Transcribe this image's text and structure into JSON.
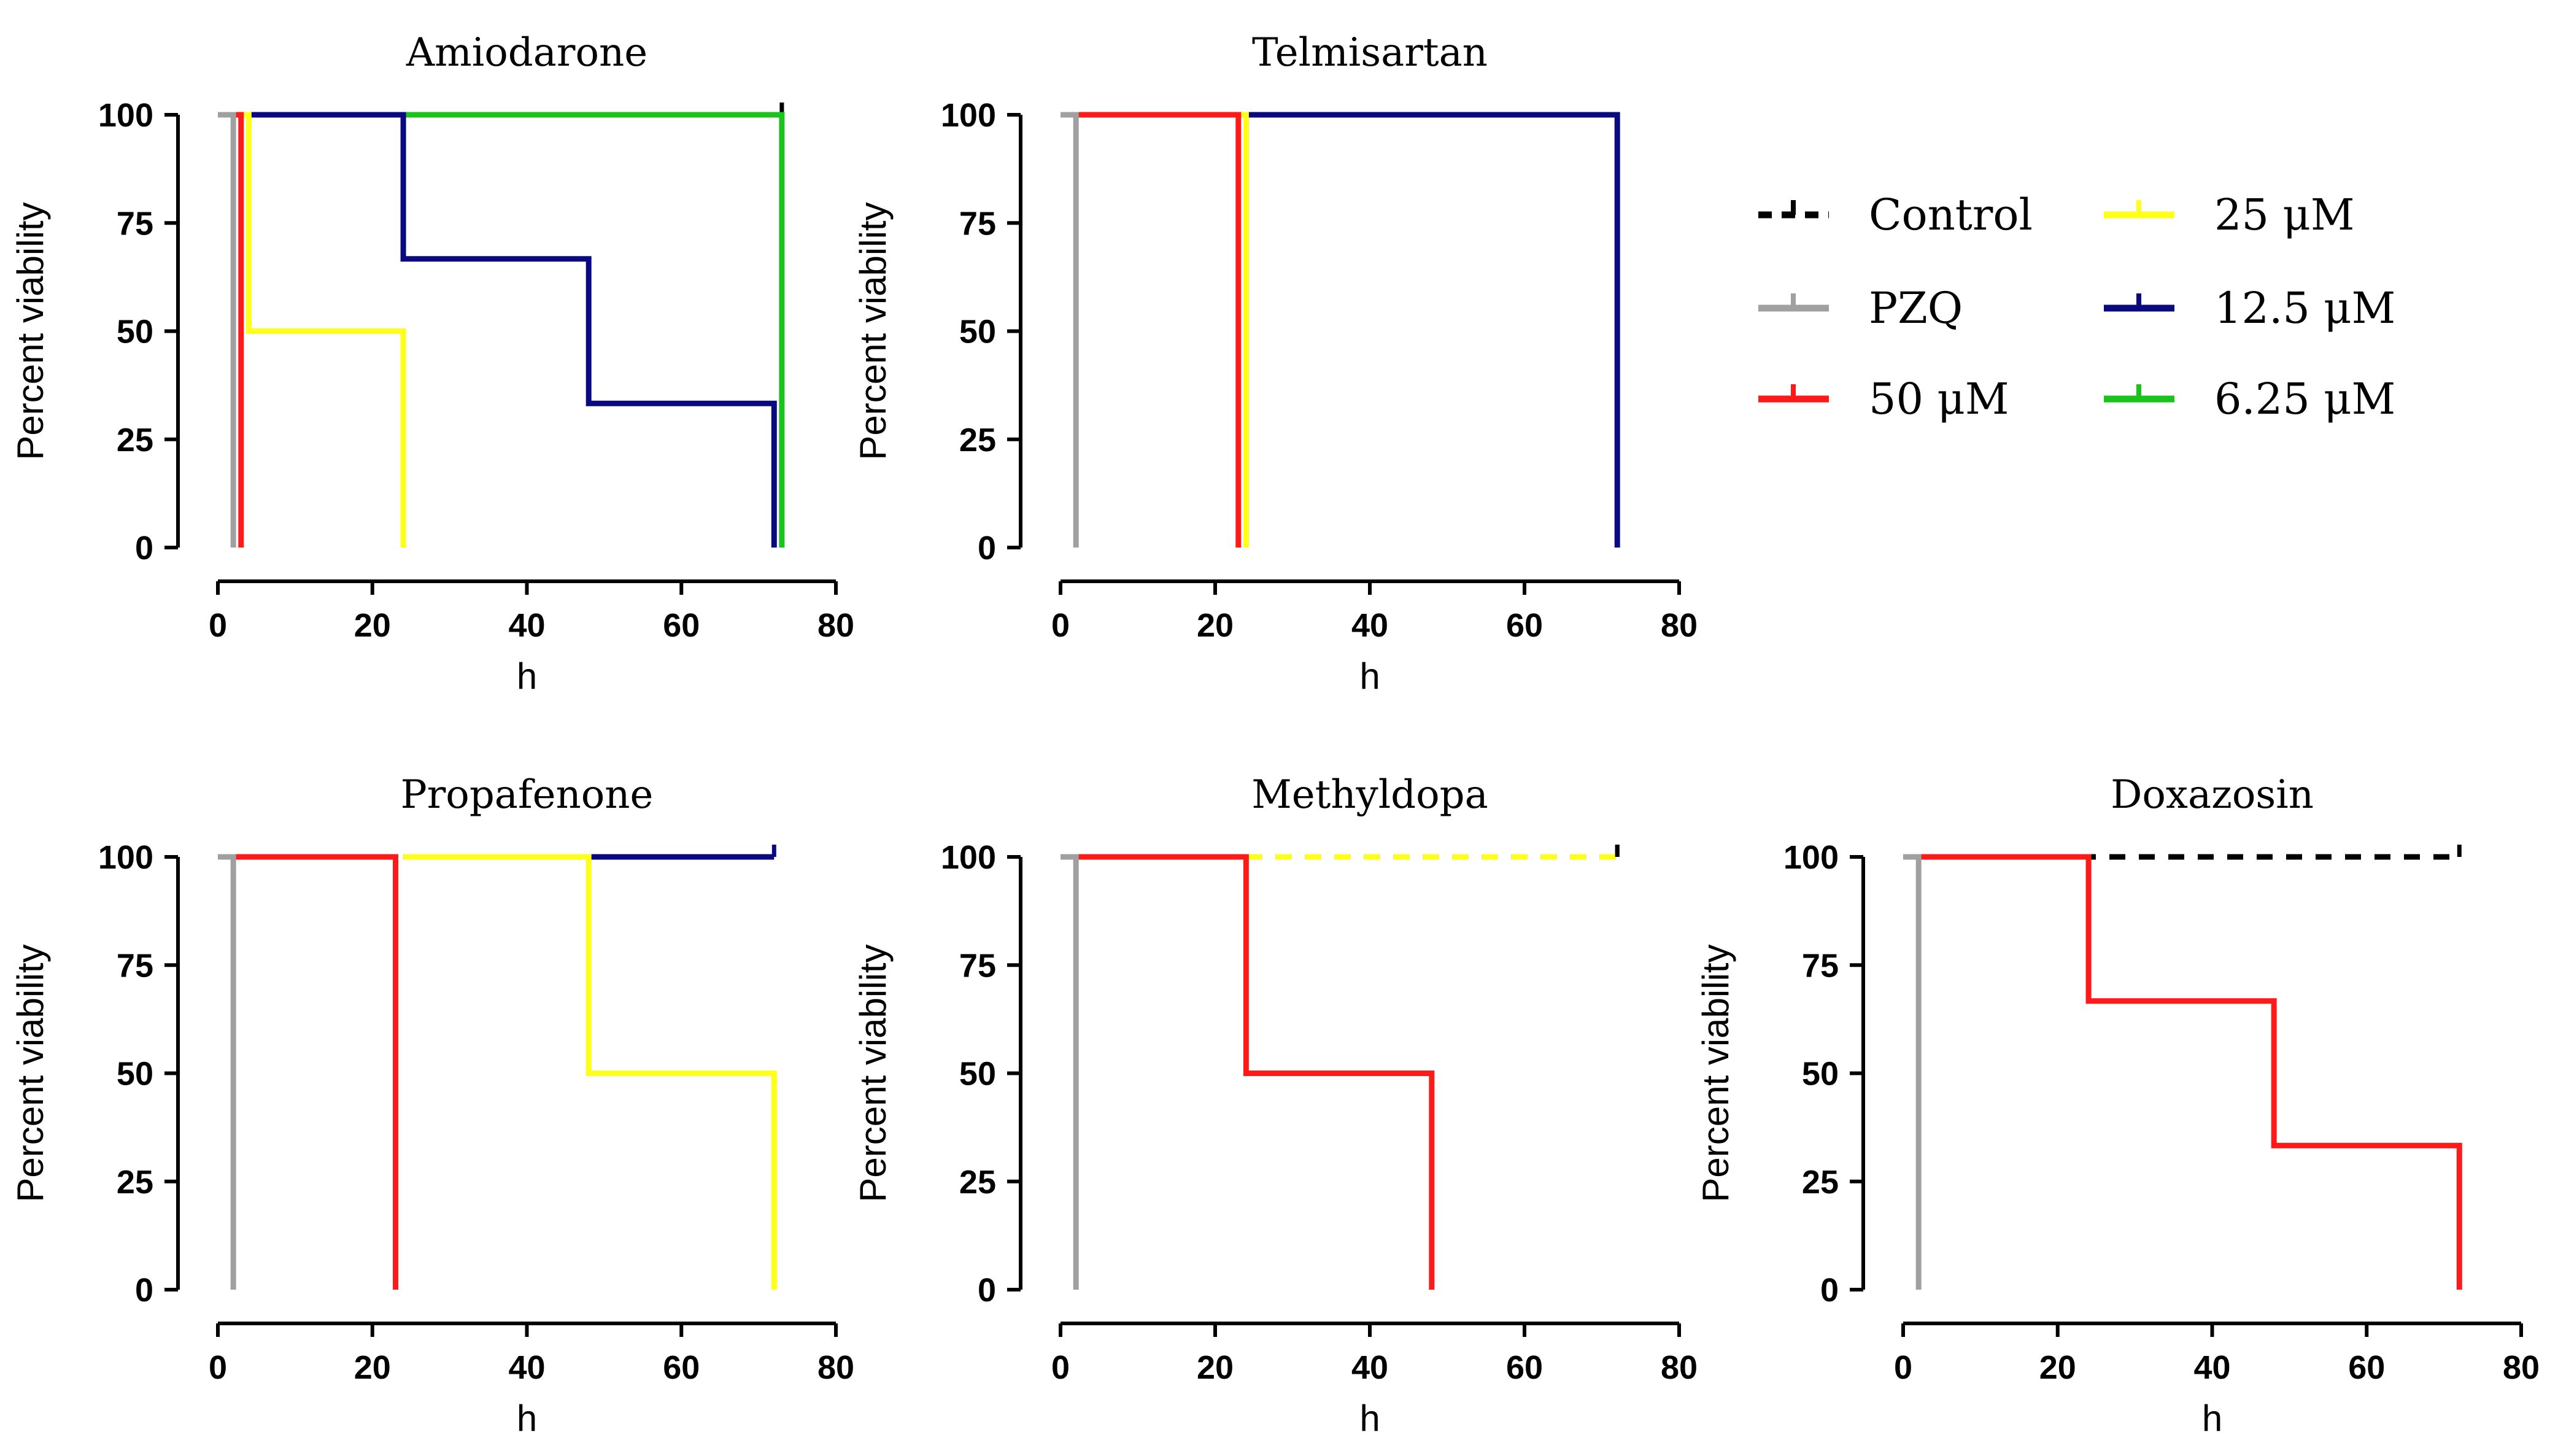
{
  "legend": {
    "entries": [
      {
        "key": "control",
        "label": "Control",
        "color": "#000000",
        "dashed": true
      },
      {
        "key": "pzq",
        "label": "PZQ",
        "color": "#a0a0a0",
        "dashed": false
      },
      {
        "key": "c50",
        "label": "50 μM",
        "color": "#ff1a1a",
        "dashed": false
      },
      {
        "key": "c25",
        "label": "25 μM",
        "color": "#ffff1a",
        "dashed": false
      },
      {
        "key": "c12_5",
        "label": "12.5 μM",
        "color": "#0a0a80",
        "dashed": false
      },
      {
        "key": "c6_25",
        "label": "6.25 μM",
        "color": "#1ac41a",
        "dashed": false
      }
    ]
  },
  "chart_data": [
    {
      "type": "line",
      "title": "Amiodarone",
      "xlabel": "h",
      "ylabel": "Percent viability",
      "xlim": [
        0,
        80
      ],
      "ylim": [
        0,
        100
      ],
      "xticks": [
        "0",
        "20",
        "40",
        "60",
        "80"
      ],
      "yticks": [
        "0",
        "25",
        "50",
        "75",
        "100"
      ],
      "series": [
        {
          "name": "Control",
          "color": "#000000",
          "dashed": true,
          "x": [
            2,
            73
          ],
          "y": [
            100,
            100
          ]
        },
        {
          "name": "6.25 μM",
          "color": "#1ac41a",
          "dashed": false,
          "x": [
            2,
            73
          ],
          "y": [
            100,
            0
          ]
        },
        {
          "name": "12.5 μM",
          "color": "#0a0a80",
          "dashed": false,
          "x": [
            2,
            24,
            48,
            72
          ],
          "y": [
            100,
            66.7,
            33.3,
            0
          ]
        },
        {
          "name": "25 μM",
          "color": "#ffff1a",
          "dashed": false,
          "x": [
            2,
            4,
            24
          ],
          "y": [
            100,
            50,
            0
          ]
        },
        {
          "name": "50 μM",
          "color": "#ff1a1a",
          "dashed": false,
          "x": [
            0,
            3
          ],
          "y": [
            100,
            0
          ]
        },
        {
          "name": "PZQ",
          "color": "#a0a0a0",
          "dashed": false,
          "x": [
            0,
            2
          ],
          "y": [
            100,
            0
          ]
        }
      ]
    },
    {
      "type": "line",
      "title": "Telmisartan",
      "xlabel": "h",
      "ylabel": "Percent viability",
      "xlim": [
        0,
        80
      ],
      "ylim": [
        0,
        100
      ],
      "xticks": [
        "0",
        "20",
        "40",
        "60",
        "80"
      ],
      "yticks": [
        "0",
        "25",
        "50",
        "75",
        "100"
      ],
      "series": [
        {
          "name": "12.5 μM",
          "color": "#0a0a80",
          "dashed": false,
          "x": [
            0,
            72
          ],
          "y": [
            100,
            0
          ]
        },
        {
          "name": "25 μM",
          "color": "#ffff1a",
          "dashed": false,
          "x": [
            0,
            24
          ],
          "y": [
            100,
            0
          ]
        },
        {
          "name": "50 μM",
          "color": "#ff1a1a",
          "dashed": false,
          "x": [
            0,
            23
          ],
          "y": [
            100,
            0
          ]
        },
        {
          "name": "PZQ",
          "color": "#a0a0a0",
          "dashed": false,
          "x": [
            0,
            2
          ],
          "y": [
            100,
            0
          ]
        }
      ]
    },
    {
      "type": "line",
      "title": "Propafenone",
      "xlabel": "h",
      "ylabel": "Percent viability",
      "xlim": [
        0,
        80
      ],
      "ylim": [
        0,
        100
      ],
      "xticks": [
        "0",
        "20",
        "40",
        "60",
        "80"
      ],
      "yticks": [
        "0",
        "25",
        "50",
        "75",
        "100"
      ],
      "series": [
        {
          "name": "12.5 μM",
          "color": "#0a0a80",
          "dashed": false,
          "x": [
            24,
            72
          ],
          "y": [
            100,
            100
          ]
        },
        {
          "name": "25 μM",
          "color": "#ffff1a",
          "dashed": false,
          "x": [
            24,
            48,
            72
          ],
          "y": [
            100,
            50,
            0
          ]
        },
        {
          "name": "50 μM",
          "color": "#ff1a1a",
          "dashed": false,
          "x": [
            0,
            23
          ],
          "y": [
            100,
            0
          ]
        },
        {
          "name": "PZQ",
          "color": "#a0a0a0",
          "dashed": false,
          "x": [
            0,
            2
          ],
          "y": [
            100,
            0
          ]
        }
      ]
    },
    {
      "type": "line",
      "title": "Methyldopa",
      "xlabel": "h",
      "ylabel": "Percent viability",
      "xlim": [
        0,
        80
      ],
      "ylim": [
        0,
        100
      ],
      "xticks": [
        "0",
        "20",
        "40",
        "60",
        "80"
      ],
      "yticks": [
        "0",
        "25",
        "50",
        "75",
        "100"
      ],
      "series": [
        {
          "name": "Control",
          "color": "#000000",
          "dashed": true,
          "x": [
            24,
            72
          ],
          "y": [
            100,
            100
          ]
        },
        {
          "name": "25 μM",
          "color": "#ffff1a",
          "dashed": true,
          "x": [
            24,
            72
          ],
          "y": [
            100,
            100
          ]
        },
        {
          "name": "50 μM",
          "color": "#ff1a1a",
          "dashed": false,
          "x": [
            0,
            24,
            48
          ],
          "y": [
            100,
            50,
            0
          ]
        },
        {
          "name": "PZQ",
          "color": "#a0a0a0",
          "dashed": false,
          "x": [
            0,
            2
          ],
          "y": [
            100,
            0
          ]
        }
      ]
    },
    {
      "type": "line",
      "title": "Doxazosin",
      "xlabel": "h",
      "ylabel": "Percent viability",
      "xlim": [
        0,
        80
      ],
      "ylim": [
        0,
        100
      ],
      "xticks": [
        "0",
        "20",
        "40",
        "60",
        "80"
      ],
      "yticks": [
        "0",
        "25",
        "50",
        "75",
        "100"
      ],
      "series": [
        {
          "name": "Control",
          "color": "#000000",
          "dashed": true,
          "x": [
            0,
            72
          ],
          "y": [
            100,
            100
          ]
        },
        {
          "name": "50 μM",
          "color": "#ff1a1a",
          "dashed": false,
          "x": [
            0,
            24,
            48,
            72
          ],
          "y": [
            100,
            66.7,
            33.3,
            0
          ]
        },
        {
          "name": "PZQ",
          "color": "#a0a0a0",
          "dashed": false,
          "x": [
            0,
            2
          ],
          "y": [
            100,
            0
          ]
        }
      ]
    }
  ]
}
